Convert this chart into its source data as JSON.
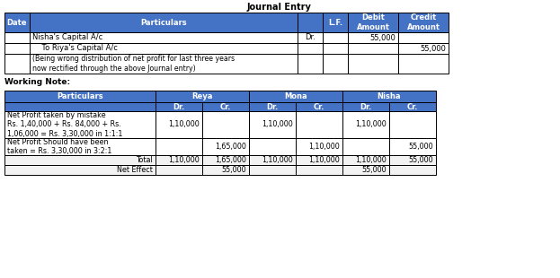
{
  "title": "Journal Entry",
  "working_note_title": "Working Note:",
  "header_bg": "#4472C4",
  "header_text_color": "#FFFFFF",
  "cell_bg": "#FFFFFF",
  "border_color": "#000000",
  "text_color": "#000000",
  "journal_headers": [
    "Date",
    "Particulars",
    "",
    "L.F.",
    "Debit\nAmount",
    "Credit\nAmount"
  ],
  "journal_col_widths": [
    28,
    298,
    28,
    28,
    56,
    56
  ],
  "journal_rows": [
    [
      "",
      "Nisha's Capital A/c",
      "Dr.",
      "",
      "55,000",
      ""
    ],
    [
      "",
      "    To Riya's Capital A/c",
      "",
      "",
      "",
      "55,000"
    ],
    [
      "",
      "(Being wrong distribution of net profit for last three years\nnow rectified through the above Journal entry)",
      "",
      "",
      "",
      ""
    ]
  ],
  "wn_col_widths": [
    168,
    52,
    52,
    52,
    52,
    52,
    52
  ],
  "wn_rows": [
    [
      "Net Profit taken by mistake\nRs. 1,40,000 + Rs. 84,000 + Rs.\n1,06,000 = Rs. 3,30,000 in 1:1:1",
      "1,10,000",
      "",
      "1,10,000",
      "",
      "1,10,000",
      ""
    ],
    [
      "Net Profit Should have been\ntaken = Rs. 3,30,000 in 3:2:1",
      "",
      "1,65,000",
      "",
      "1,10,000",
      "",
      "55,000"
    ],
    [
      "Total",
      "1,10,000",
      "1,65,000",
      "1,10,000",
      "1,10,000",
      "1,10,000",
      "55,000"
    ],
    [
      "Net Effect",
      "",
      "55,000",
      "",
      "",
      "55,000",
      ""
    ]
  ]
}
